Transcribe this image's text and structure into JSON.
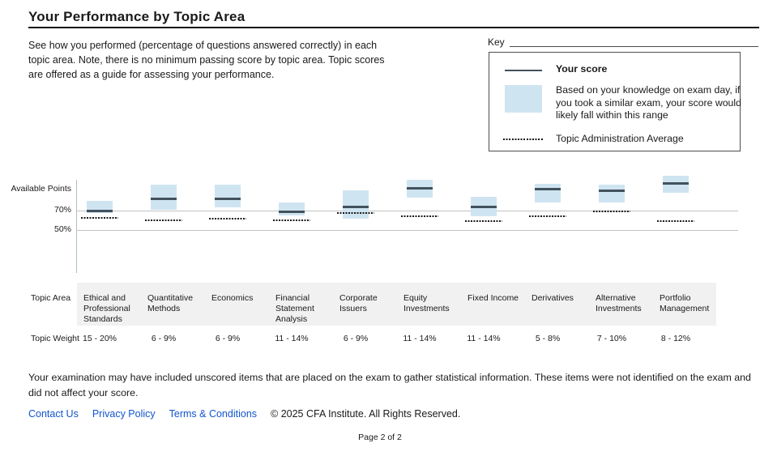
{
  "page": {
    "title": "Your Performance by Topic Area",
    "description": "See how you performed (percentage of questions answered correctly) in each topic area. Note, there is no minimum passing score by topic area. Topic scores are offered as a guide for assessing your performance.",
    "footnote": "Your examination may have included unscored items that are placed on the exam to gather statistical information. These items were not identified on the exam and did not affect your score.",
    "page_indicator": "Page 2 of 2"
  },
  "key": {
    "label": "Key",
    "score_label": "Your score",
    "range_label": "Based on your knowledge on exam day, if you took a similar exam, your score would likely fall within this range",
    "average_label": "Topic Administration Average"
  },
  "chart_data": {
    "type": "range-bar",
    "title": "",
    "ylabel_top": "Available Points",
    "yticks": [
      "70%",
      "50%"
    ],
    "ytick_values": [
      70,
      50
    ],
    "y_unit": "percent of available points",
    "grid": "horizontal",
    "legend_position": "top-right",
    "categories": [
      "Ethical and Professional Standards",
      "Quantitative Methods",
      "Economics",
      "Financial Statement Analysis",
      "Corporate Issuers",
      "Equity Investments",
      "Fixed Income",
      "Derivatives",
      "Alternative Investments",
      "Portfolio Management"
    ],
    "series": [
      {
        "key": "score",
        "name": "Your score",
        "values": [
          70,
          80,
          80,
          69,
          73,
          89,
          73,
          88,
          87,
          93
        ]
      },
      {
        "key": "low",
        "name": "Likely range low",
        "values": [
          68,
          71,
          73,
          66,
          63,
          81,
          65,
          77,
          77,
          85
        ]
      },
      {
        "key": "high",
        "name": "Likely range high",
        "values": [
          78,
          92,
          92,
          77,
          87,
          96,
          82,
          93,
          92,
          100
        ]
      },
      {
        "key": "avg",
        "name": "Topic Administration Average",
        "values": [
          64,
          62,
          63,
          62,
          68,
          65,
          61,
          65,
          69,
          61
        ]
      }
    ]
  },
  "table": {
    "area_label": "Topic Area",
    "weight_label": "Topic Weight",
    "weights": [
      "15 - 20%",
      "6 - 9%",
      "6 - 9%",
      "11 - 14%",
      "6 - 9%",
      "11 - 14%",
      "11 - 14%",
      "5 - 8%",
      "7 - 10%",
      "8 - 12%"
    ]
  },
  "footer": {
    "links": [
      "Contact Us",
      "Privacy Policy",
      "Terms & Conditions"
    ],
    "copyright": "© 2025 CFA Institute. All Rights Reserved."
  },
  "colors": {
    "range_fill": "#cfe4f1",
    "score_line": "#42525d",
    "average_dots": "#1a1a1a",
    "gridline": "#c2c2c2",
    "axis": "#b3bcc2",
    "table_band": "#f1f1f1",
    "key_border": "#4d4d4d",
    "link_blue": "#1155cc"
  }
}
